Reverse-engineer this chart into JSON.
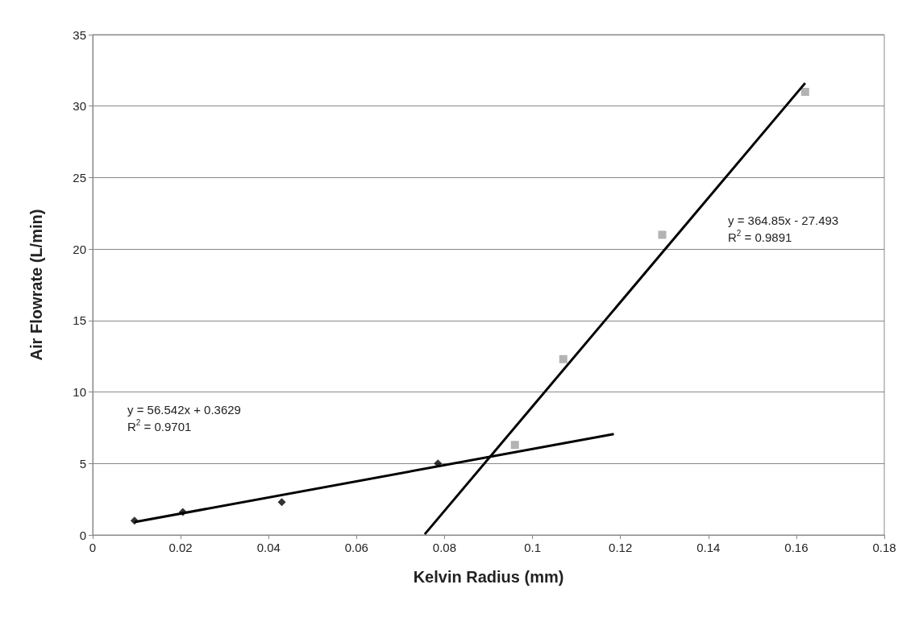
{
  "chart_data": {
    "type": "scatter",
    "xlabel": "Kelvin Radius (mm)",
    "ylabel": "Air Flowrate (L/min)",
    "xlim": [
      0,
      0.18
    ],
    "xticks": [
      0,
      0.02,
      0.04,
      0.06,
      0.08,
      0.1,
      0.12,
      0.14,
      0.16,
      0.18
    ],
    "ylim": [
      0,
      35
    ],
    "yticks": [
      0,
      5,
      10,
      15,
      20,
      25,
      30,
      35
    ],
    "grid": "y",
    "series": [
      {
        "type": "scatter",
        "color": "#000000",
        "marker": "diamond",
        "x": [
          0.0095,
          0.0205,
          0.043,
          0.0785
        ],
        "values": [
          1.0,
          1.6,
          2.3,
          5.0
        ]
      },
      {
        "type": "scatter",
        "color": "#a0a0a0",
        "marker": "square",
        "x": [
          0.096,
          0.107,
          0.1295,
          0.162
        ],
        "values": [
          6.3,
          12.3,
          21,
          31
        ]
      },
      {
        "type": "line",
        "color": "#000000",
        "marker": "none",
        "line_style": "solid",
        "x": [
          0.0095,
          0.1185
        ],
        "values": [
          0.9,
          7.06
        ]
      },
      {
        "type": "line",
        "color": "#000000",
        "marker": "none",
        "line_style": "solid",
        "x": [
          0.0755,
          0.162
        ],
        "values": [
          0.05,
          31.61
        ]
      }
    ],
    "annotations": [
      "y = 56.542x + 0.3629\nR$^{2}$ = 0.9701",
      "y = 364.85x - 27.493\nR$^{2}$ = 0.9891"
    ]
  }
}
